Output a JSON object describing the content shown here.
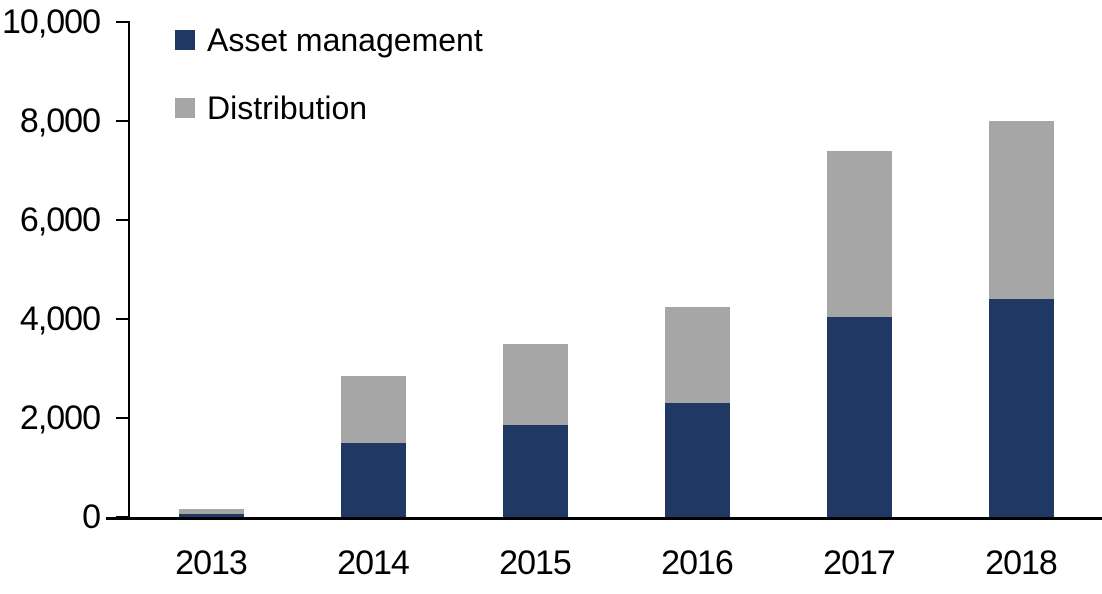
{
  "chart_data": {
    "type": "bar",
    "stacked": true,
    "title": "",
    "xlabel": "",
    "ylabel": "",
    "categories": [
      "2013",
      "2014",
      "2015",
      "2016",
      "2017",
      "2018"
    ],
    "series": [
      {
        "name": "Asset management",
        "color": "#1F3864",
        "values": [
          60,
          1500,
          1850,
          2300,
          4050,
          4400
        ]
      },
      {
        "name": "Distribution",
        "color": "#A6A6A6",
        "values": [
          100,
          1350,
          1650,
          1950,
          3350,
          3600
        ]
      }
    ],
    "ylim": [
      0,
      10000
    ],
    "ytick_interval": 2000,
    "yticks": [
      0,
      2000,
      4000,
      6000,
      8000,
      10000
    ],
    "ytick_labels": [
      "0",
      "2,000",
      "4,000",
      "6,000",
      "8,000",
      "10,000"
    ],
    "legend_position": "top-left",
    "grid": false,
    "axis_color": "#000000",
    "background_color": "#FFFFFF"
  }
}
